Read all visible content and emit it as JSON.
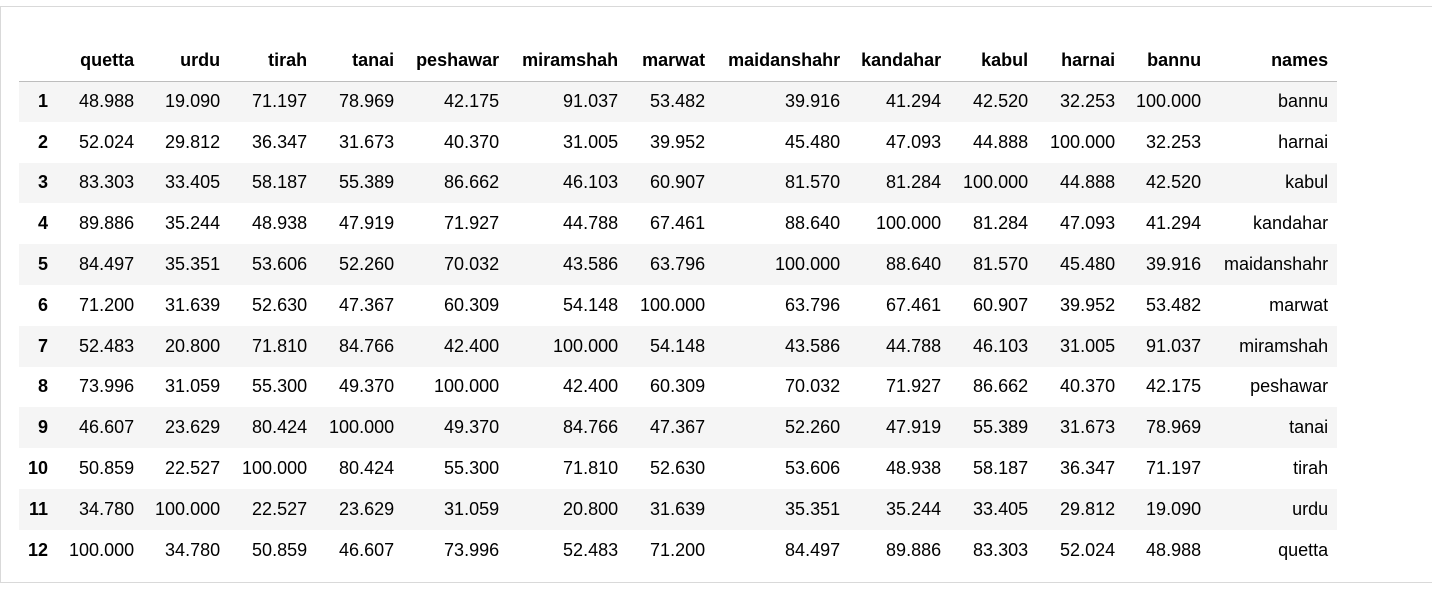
{
  "table": {
    "columns": [
      "",
      "quetta",
      "urdu",
      "tirah",
      "tanai",
      "peshawar",
      "miramshah",
      "marwat",
      "maidanshahr",
      "kandahar",
      "kabul",
      "harnai",
      "bannu",
      "names"
    ],
    "rows": [
      [
        "1",
        "48.988",
        "19.090",
        "71.197",
        "78.969",
        "42.175",
        "91.037",
        "53.482",
        "39.916",
        "41.294",
        "42.520",
        "32.253",
        "100.000",
        "bannu"
      ],
      [
        "2",
        "52.024",
        "29.812",
        "36.347",
        "31.673",
        "40.370",
        "31.005",
        "39.952",
        "45.480",
        "47.093",
        "44.888",
        "100.000",
        "32.253",
        "harnai"
      ],
      [
        "3",
        "83.303",
        "33.405",
        "58.187",
        "55.389",
        "86.662",
        "46.103",
        "60.907",
        "81.570",
        "81.284",
        "100.000",
        "44.888",
        "42.520",
        "kabul"
      ],
      [
        "4",
        "89.886",
        "35.244",
        "48.938",
        "47.919",
        "71.927",
        "44.788",
        "67.461",
        "88.640",
        "100.000",
        "81.284",
        "47.093",
        "41.294",
        "kandahar"
      ],
      [
        "5",
        "84.497",
        "35.351",
        "53.606",
        "52.260",
        "70.032",
        "43.586",
        "63.796",
        "100.000",
        "88.640",
        "81.570",
        "45.480",
        "39.916",
        "maidanshahr"
      ],
      [
        "6",
        "71.200",
        "31.639",
        "52.630",
        "47.367",
        "60.309",
        "54.148",
        "100.000",
        "63.796",
        "67.461",
        "60.907",
        "39.952",
        "53.482",
        "marwat"
      ],
      [
        "7",
        "52.483",
        "20.800",
        "71.810",
        "84.766",
        "42.400",
        "100.000",
        "54.148",
        "43.586",
        "44.788",
        "46.103",
        "31.005",
        "91.037",
        "miramshah"
      ],
      [
        "8",
        "73.996",
        "31.059",
        "55.300",
        "49.370",
        "100.000",
        "42.400",
        "60.309",
        "70.032",
        "71.927",
        "86.662",
        "40.370",
        "42.175",
        "peshawar"
      ],
      [
        "9",
        "46.607",
        "23.629",
        "80.424",
        "100.000",
        "49.370",
        "84.766",
        "47.367",
        "52.260",
        "47.919",
        "55.389",
        "31.673",
        "78.969",
        "tanai"
      ],
      [
        "10",
        "50.859",
        "22.527",
        "100.000",
        "80.424",
        "55.300",
        "71.810",
        "52.630",
        "53.606",
        "48.938",
        "58.187",
        "36.347",
        "71.197",
        "tirah"
      ],
      [
        "11",
        "34.780",
        "100.000",
        "22.527",
        "23.629",
        "31.059",
        "20.800",
        "31.639",
        "35.351",
        "35.244",
        "33.405",
        "29.812",
        "19.090",
        "urdu"
      ],
      [
        "12",
        "100.000",
        "34.780",
        "50.859",
        "46.607",
        "73.996",
        "52.483",
        "71.200",
        "84.497",
        "89.886",
        "83.303",
        "52.024",
        "48.988",
        "quetta"
      ]
    ]
  }
}
